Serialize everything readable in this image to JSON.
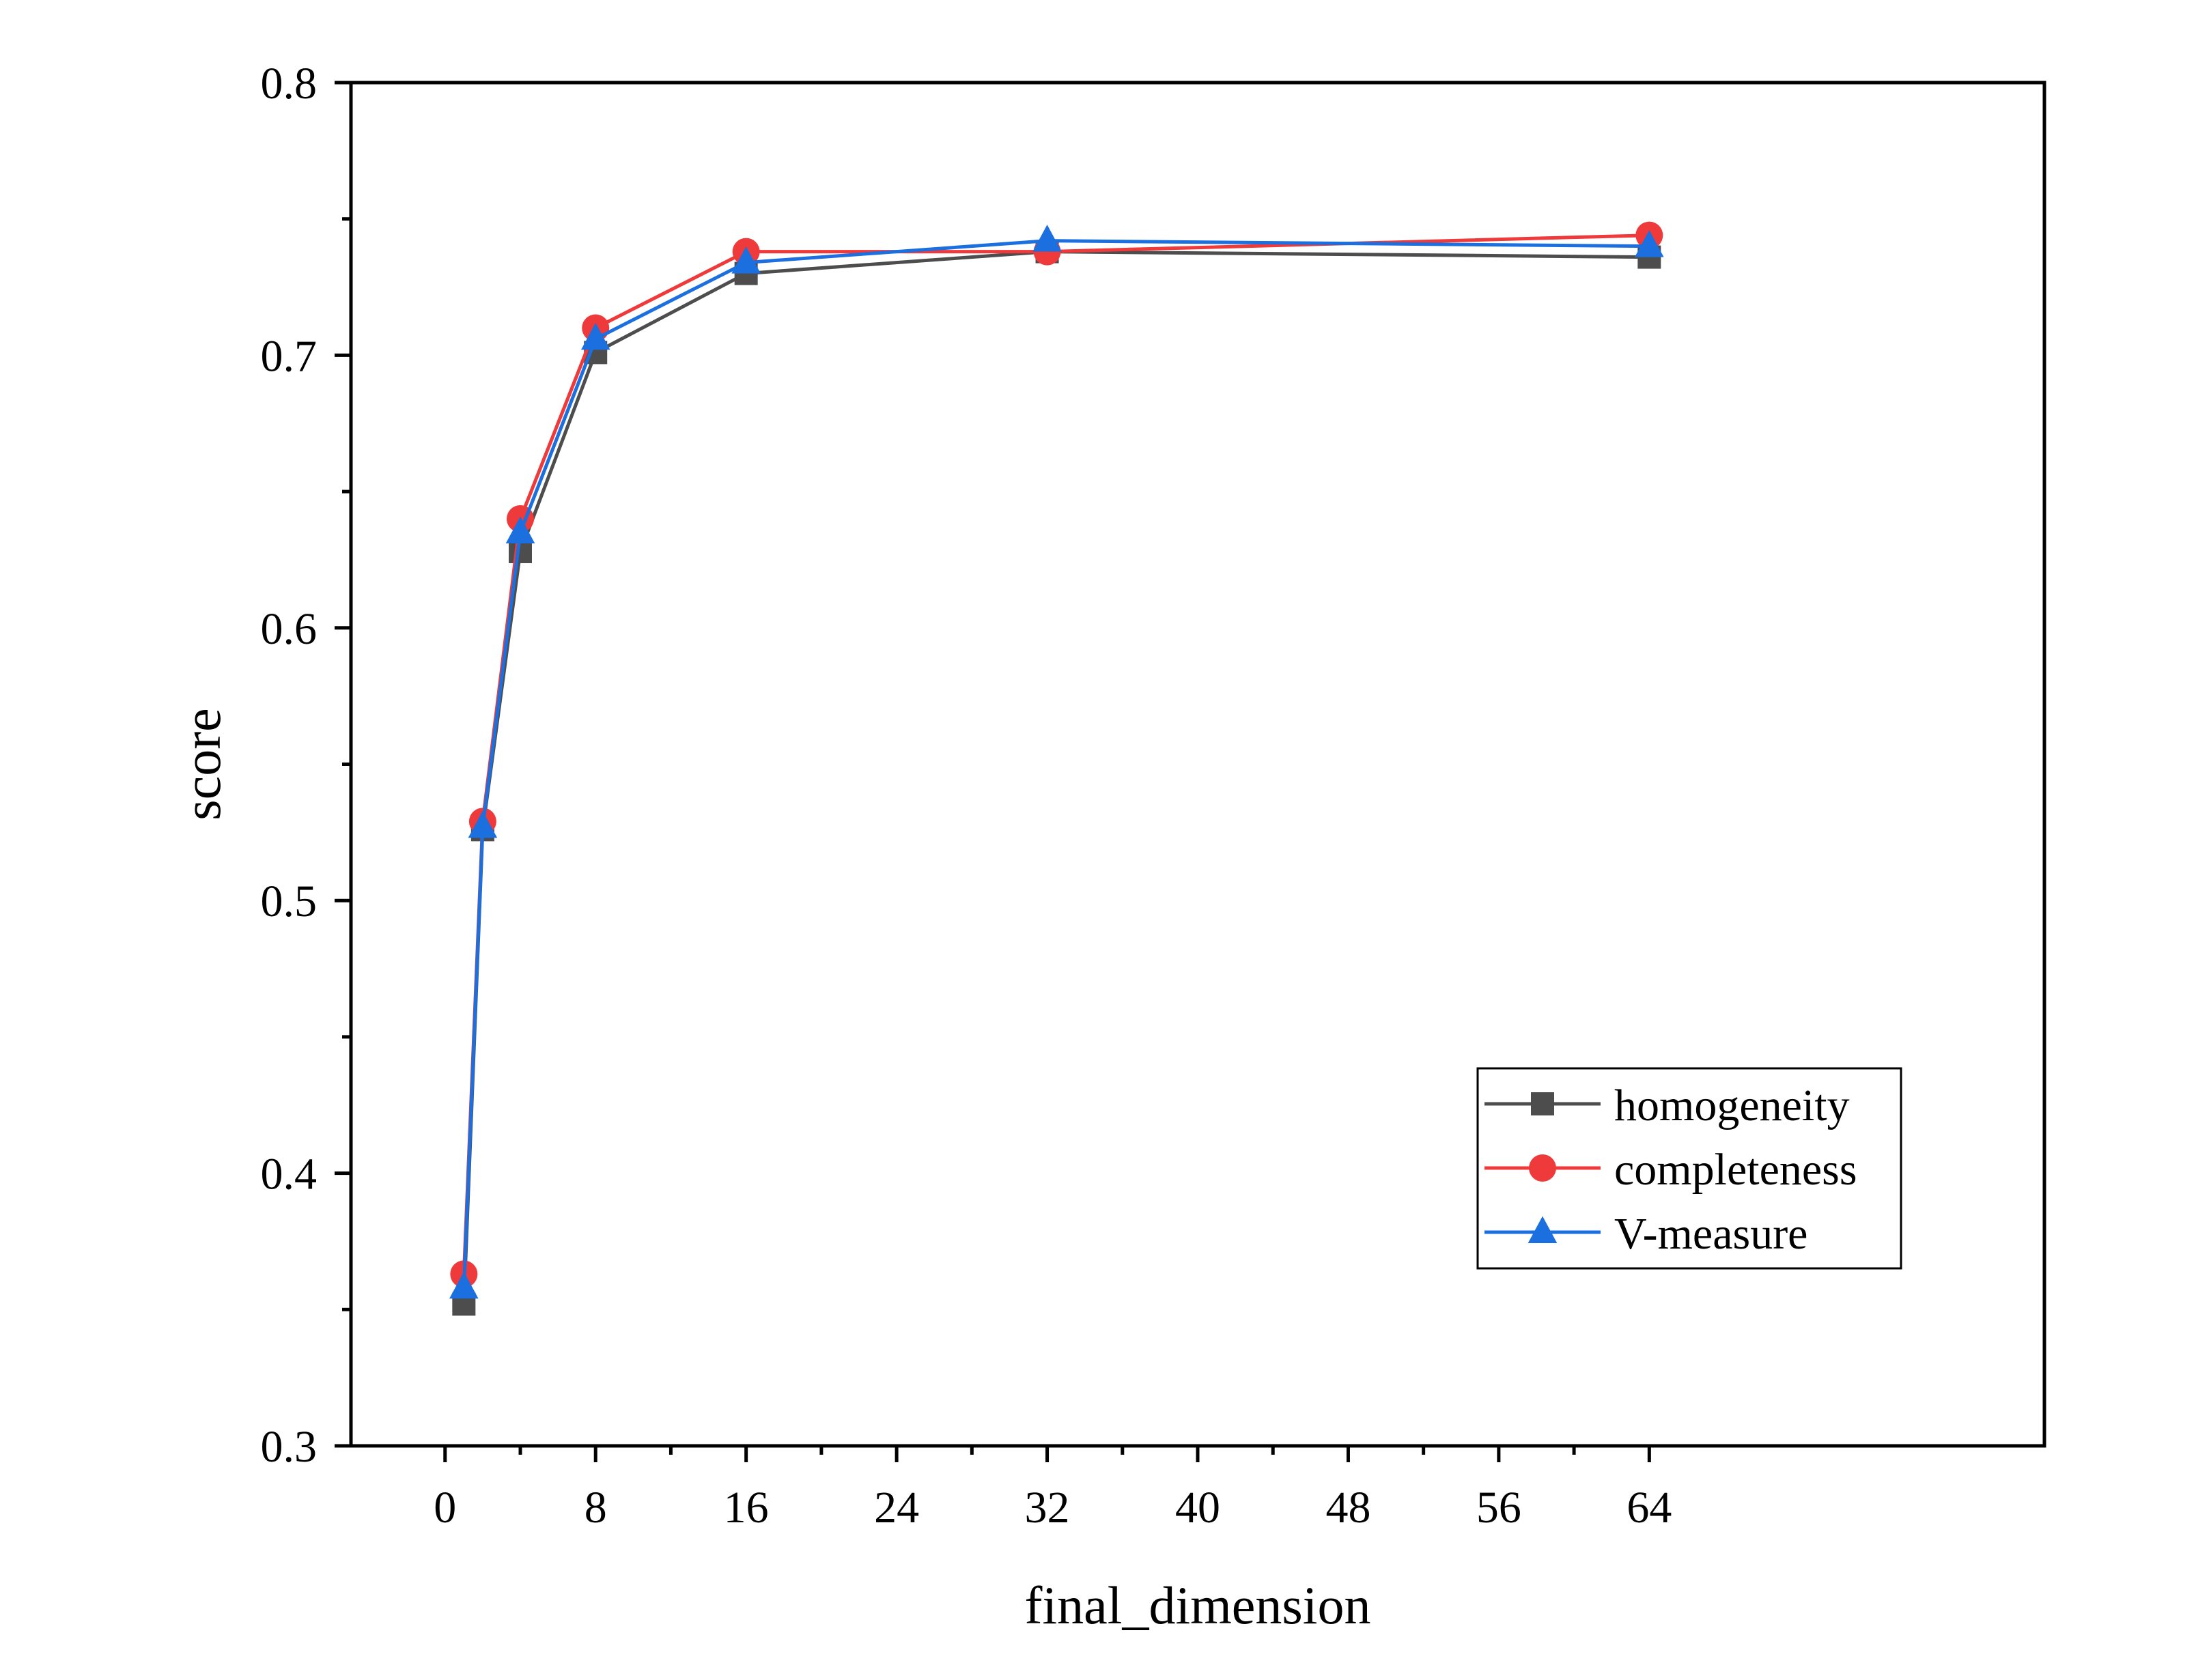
{
  "chart_data": {
    "type": "line",
    "title": "",
    "xlabel": "final_dimension",
    "ylabel": "score",
    "xlim": [
      -5,
      85
    ],
    "ylim": [
      0.3,
      0.8
    ],
    "x": [
      1,
      2,
      4,
      8,
      16,
      32,
      64
    ],
    "xticks": [
      0,
      8,
      16,
      24,
      32,
      40,
      48,
      56,
      64
    ],
    "xtick_labels": [
      "0",
      "8",
      "16",
      "24",
      "32",
      "40",
      "48",
      "56",
      "64"
    ],
    "yticks": [
      0.3,
      0.4,
      0.5,
      0.6,
      0.7,
      0.8
    ],
    "ytick_labels": [
      "0.3",
      "0.4",
      "0.5",
      "0.6",
      "0.7",
      "0.8"
    ],
    "grid": false,
    "legend_position": "lower-right",
    "series": [
      {
        "name": "homogeneity",
        "color": "#4d4d4d",
        "marker": "square",
        "values": [
          0.352,
          0.526,
          0.628,
          0.701,
          0.73,
          0.738,
          0.736
        ]
      },
      {
        "name": "completeness",
        "color": "#ee3a3a",
        "marker": "circle",
        "values": [
          0.363,
          0.529,
          0.64,
          0.71,
          0.738,
          0.738,
          0.744
        ]
      },
      {
        "name": "V-measure",
        "color": "#1c6fdf",
        "marker": "triangle",
        "values": [
          0.358,
          0.527,
          0.635,
          0.706,
          0.734,
          0.742,
          0.74
        ]
      }
    ]
  }
}
